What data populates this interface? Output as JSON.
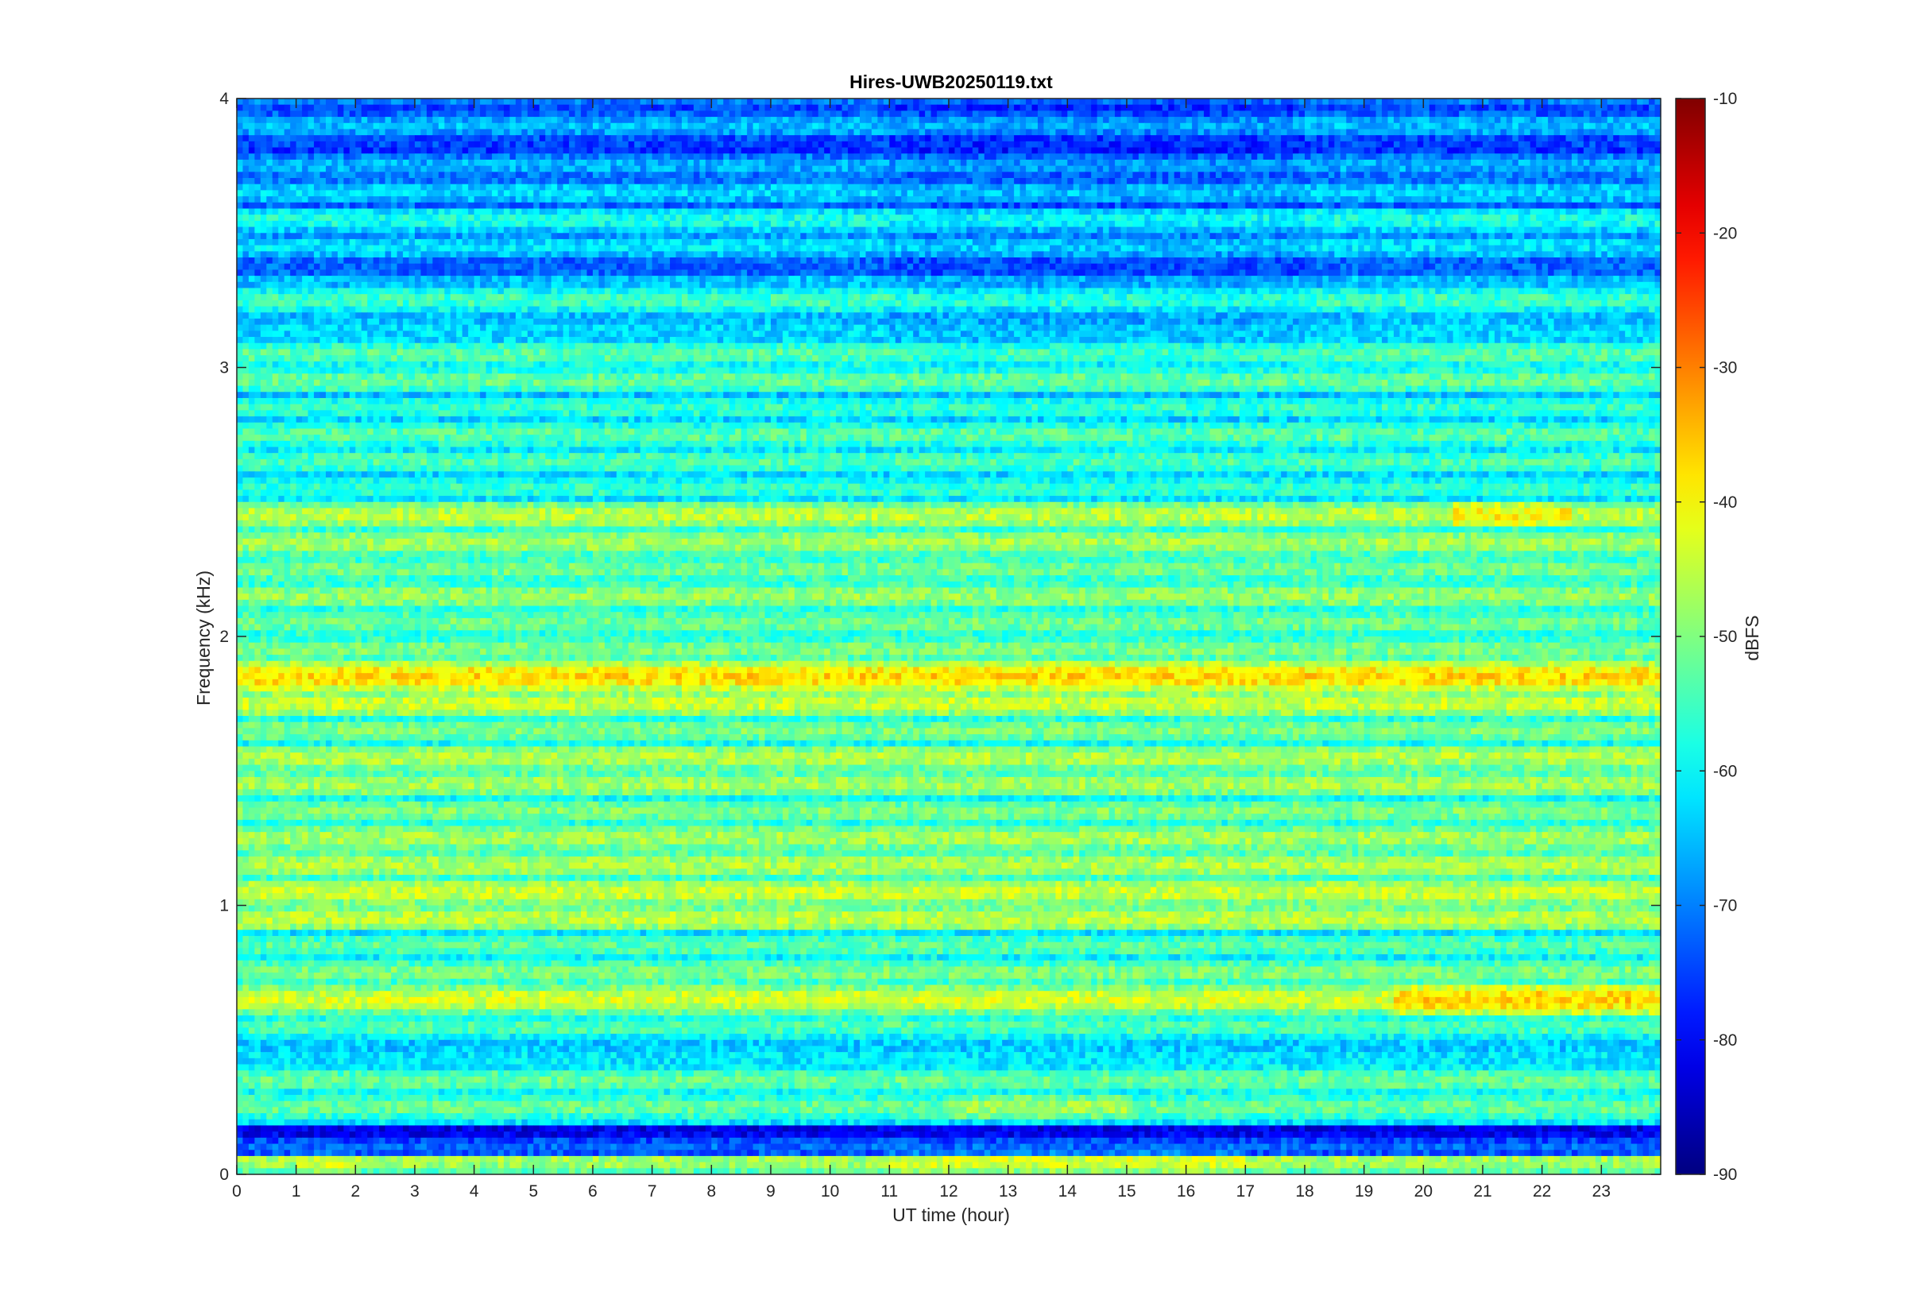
{
  "chart_data": {
    "type": "heatmap",
    "title": "Hires-UWB20250119.txt",
    "xlabel": "UT time (hour)",
    "ylabel": "Frequency (kHz)",
    "xlim": [
      0,
      24
    ],
    "ylim": [
      0,
      4
    ],
    "x_ticks": [
      0,
      1,
      2,
      3,
      4,
      5,
      6,
      7,
      8,
      9,
      10,
      11,
      12,
      13,
      14,
      15,
      16,
      17,
      18,
      19,
      20,
      21,
      22,
      23
    ],
    "y_ticks": [
      0,
      1,
      2,
      3,
      4
    ],
    "colorbar": {
      "label": "dBFS",
      "colormap": "jet",
      "limits": [
        -90,
        -10
      ],
      "ticks": [
        -90,
        -80,
        -70,
        -60,
        -50,
        -40,
        -30,
        -20,
        -10
      ]
    },
    "bands": [
      {
        "f": 0.05,
        "level": -47,
        "notes": "strong near 1-2h and 11-17h"
      },
      {
        "f": 0.1,
        "level": -72
      },
      {
        "f": 0.25,
        "level": -52,
        "notes": "stronger 12-15h"
      },
      {
        "f": 0.35,
        "level": -52
      },
      {
        "f": 0.55,
        "level": -54
      },
      {
        "f": 0.65,
        "level": -43,
        "notes": "up to -35 dBFS after 19.5h"
      },
      {
        "f": 0.75,
        "level": -50
      },
      {
        "f": 0.85,
        "level": -53
      },
      {
        "f": 0.95,
        "level": -45
      },
      {
        "f": 1.05,
        "level": -44
      },
      {
        "f": 1.15,
        "level": -46
      },
      {
        "f": 1.25,
        "level": -47
      },
      {
        "f": 1.35,
        "level": -50
      },
      {
        "f": 1.45,
        "level": -47
      },
      {
        "f": 1.55,
        "level": -46
      },
      {
        "f": 1.65,
        "level": -50
      },
      {
        "f": 1.75,
        "level": -44
      },
      {
        "f": 1.85,
        "level": -40,
        "notes": "peaks near -35 dBFS"
      },
      {
        "f": 1.95,
        "level": -50
      },
      {
        "f": 2.05,
        "level": -51
      },
      {
        "f": 2.15,
        "level": -48
      },
      {
        "f": 2.25,
        "level": -51
      },
      {
        "f": 2.35,
        "level": -47
      },
      {
        "f": 2.45,
        "level": -45,
        "notes": "peaks near -37 dBFS at 20.5-22.5h"
      },
      {
        "f": 2.55,
        "level": -56
      },
      {
        "f": 2.65,
        "level": -54
      },
      {
        "f": 2.75,
        "level": -53
      },
      {
        "f": 2.85,
        "level": -56
      },
      {
        "f": 2.95,
        "level": -52
      },
      {
        "f": 3.05,
        "level": -53
      },
      {
        "f": 3.25,
        "level": -55
      },
      {
        "f": 3.45,
        "level": -62
      },
      {
        "f": 3.55,
        "level": -58
      },
      {
        "f": 3.65,
        "level": -63
      },
      {
        "f": 3.75,
        "level": -66
      },
      {
        "f": 3.9,
        "level": -65
      },
      {
        "f": 4.0,
        "level": -70
      }
    ],
    "grid": false
  }
}
